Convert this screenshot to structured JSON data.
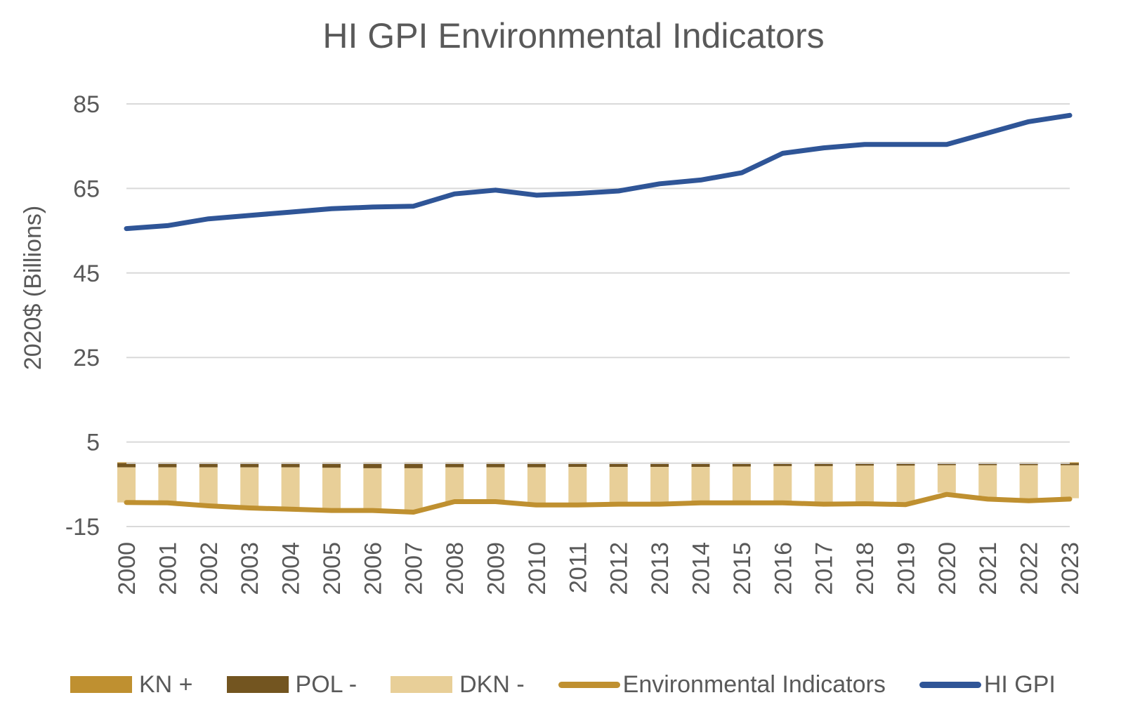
{
  "chart_data": {
    "type": "bar",
    "title": "HI GPI Environmental Indicators",
    "ylabel": "2020$ (Billions)",
    "xlabel": "",
    "ylim": [
      -15,
      85
    ],
    "yticks": [
      85,
      65,
      45,
      25,
      5,
      -15
    ],
    "grid": true,
    "legend_position": "bottom",
    "categories": [
      "2000",
      "2001",
      "2002",
      "2003",
      "2004",
      "2005",
      "2006",
      "2007",
      "2008",
      "2009",
      "2010",
      "2011",
      "2012",
      "2013",
      "2014",
      "2015",
      "2016",
      "2017",
      "2018",
      "2019",
      "2020",
      "2021",
      "2022",
      "2023"
    ],
    "series": [
      {
        "name": "KN +",
        "kind": "bar",
        "color": "#BF9030",
        "values": [
          0.2,
          0.2,
          0.2,
          0.2,
          0.2,
          0.2,
          0.2,
          0.2,
          0.2,
          0.2,
          0.2,
          0.2,
          0.2,
          0.2,
          0.2,
          0.2,
          0.2,
          0.2,
          0.2,
          0.2,
          0.2,
          0.2,
          0.2,
          0.2
        ]
      },
      {
        "name": "POL -",
        "kind": "bar",
        "color": "#735520",
        "values": [
          -1.0,
          -1.0,
          -1.0,
          -1.0,
          -1.0,
          -1.1,
          -1.2,
          -1.2,
          -1.0,
          -1.0,
          -1.0,
          -0.9,
          -0.9,
          -0.9,
          -0.9,
          -0.8,
          -0.7,
          -0.7,
          -0.6,
          -0.6,
          -0.5,
          -0.5,
          -0.5,
          -0.5
        ]
      },
      {
        "name": "DKN -",
        "kind": "bar",
        "color": "#E8CF98",
        "values": [
          -8.3,
          -8.5,
          -8.8,
          -9.1,
          -9.4,
          -9.6,
          -9.8,
          -10.0,
          -8.3,
          -8.3,
          -9.0,
          -9.2,
          -9.0,
          -9.0,
          -8.8,
          -8.9,
          -8.9,
          -9.2,
          -9.2,
          -9.3,
          -6.5,
          -7.6,
          -8.2,
          -7.8
        ]
      },
      {
        "name": "Environmental Indicators",
        "kind": "line",
        "color": "#BF9030",
        "values": [
          -9.3,
          -9.4,
          -10.1,
          -10.6,
          -10.9,
          -11.2,
          -11.2,
          -11.6,
          -9.1,
          -9.1,
          -9.9,
          -9.9,
          -9.7,
          -9.7,
          -9.4,
          -9.4,
          -9.4,
          -9.7,
          -9.6,
          -9.8,
          -7.4,
          -8.5,
          -8.9,
          -8.5
        ]
      },
      {
        "name": "HI GPI",
        "kind": "line",
        "color": "#2F5597",
        "values": [
          55.5,
          56.2,
          57.8,
          58.6,
          59.4,
          60.2,
          60.6,
          60.8,
          63.7,
          64.6,
          63.4,
          63.8,
          64.4,
          66.1,
          67.0,
          68.7,
          73.3,
          74.6,
          75.4,
          75.4,
          75.4,
          78.1,
          80.8,
          82.3
        ]
      }
    ]
  }
}
